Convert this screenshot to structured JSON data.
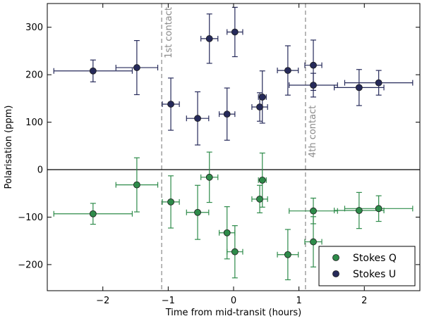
{
  "chart_data": {
    "type": "scatter",
    "title": "",
    "xlabel": "Time from mid-transit (hours)",
    "ylabel": "Polarisation (ppm)",
    "xlim": [
      -2.85,
      2.85
    ],
    "ylim": [
      -255,
      350
    ],
    "x_ticks": [
      -2,
      -1,
      0,
      1,
      2
    ],
    "x_tick_labels": [
      "−2",
      "−1",
      "0",
      "1",
      "2"
    ],
    "y_ticks": [
      -200,
      -100,
      0,
      100,
      200,
      300
    ],
    "y_tick_labels": [
      "−200",
      "−100",
      "0",
      "100",
      "200",
      "300"
    ],
    "zero_line": 0,
    "grid": false,
    "contacts": [
      {
        "x": -1.1,
        "label": "1st contact",
        "label_anchor": "top"
      },
      {
        "x": 1.1,
        "label": "4th contact",
        "label_anchor": "bottom"
      }
    ],
    "legend": {
      "position": "lower-right",
      "entries": [
        "Stokes Q",
        "Stokes U"
      ]
    },
    "series": [
      {
        "name": "Stokes Q",
        "color": "#2e8b4a",
        "points": [
          {
            "x": -2.15,
            "y": -93,
            "xerr": 0.6,
            "yerr": 22
          },
          {
            "x": -1.48,
            "y": -32,
            "xerr": 0.32,
            "yerr": 57
          },
          {
            "x": -0.96,
            "y": -68,
            "xerr": 0.13,
            "yerr": 55
          },
          {
            "x": -0.55,
            "y": -90,
            "xerr": 0.17,
            "yerr": 57
          },
          {
            "x": -0.37,
            "y": -16,
            "xerr": 0.13,
            "yerr": 53
          },
          {
            "x": -0.1,
            "y": -133,
            "xerr": 0.12,
            "yerr": 55
          },
          {
            "x": 0.02,
            "y": -173,
            "xerr": 0.12,
            "yerr": 55
          },
          {
            "x": 0.4,
            "y": -62,
            "xerr": 0.12,
            "yerr": 29
          },
          {
            "x": 0.44,
            "y": -22,
            "xerr": 0.06,
            "yerr": 57
          },
          {
            "x": 0.83,
            "y": -179,
            "xerr": 0.16,
            "yerr": 53
          },
          {
            "x": 1.22,
            "y": -87,
            "xerr": 0.37,
            "yerr": 27
          },
          {
            "x": 1.22,
            "y": -152,
            "xerr": 0.13,
            "yerr": 53
          },
          {
            "x": 1.92,
            "y": -86,
            "xerr": 0.38,
            "yerr": 38
          },
          {
            "x": 2.22,
            "y": -82,
            "xerr": 0.52,
            "yerr": 27
          }
        ]
      },
      {
        "name": "Stokes U",
        "color": "#262a5a",
        "points": [
          {
            "x": -2.15,
            "y": 208,
            "xerr": 0.6,
            "yerr": 23
          },
          {
            "x": -1.48,
            "y": 215,
            "xerr": 0.32,
            "yerr": 57
          },
          {
            "x": -0.96,
            "y": 138,
            "xerr": 0.13,
            "yerr": 55
          },
          {
            "x": -0.55,
            "y": 108,
            "xerr": 0.17,
            "yerr": 56
          },
          {
            "x": -0.37,
            "y": 276,
            "xerr": 0.13,
            "yerr": 52
          },
          {
            "x": -0.1,
            "y": 117,
            "xerr": 0.12,
            "yerr": 55
          },
          {
            "x": 0.02,
            "y": 290,
            "xerr": 0.12,
            "yerr": 52
          },
          {
            "x": 0.4,
            "y": 132,
            "xerr": 0.12,
            "yerr": 30
          },
          {
            "x": 0.44,
            "y": 153,
            "xerr": 0.06,
            "yerr": 55
          },
          {
            "x": 0.83,
            "y": 209,
            "xerr": 0.16,
            "yerr": 52
          },
          {
            "x": 1.22,
            "y": 178,
            "xerr": 0.37,
            "yerr": 25
          },
          {
            "x": 1.22,
            "y": 220,
            "xerr": 0.13,
            "yerr": 53
          },
          {
            "x": 1.92,
            "y": 173,
            "xerr": 0.38,
            "yerr": 38
          },
          {
            "x": 2.22,
            "y": 183,
            "xerr": 0.52,
            "yerr": 26
          }
        ]
      }
    ]
  }
}
